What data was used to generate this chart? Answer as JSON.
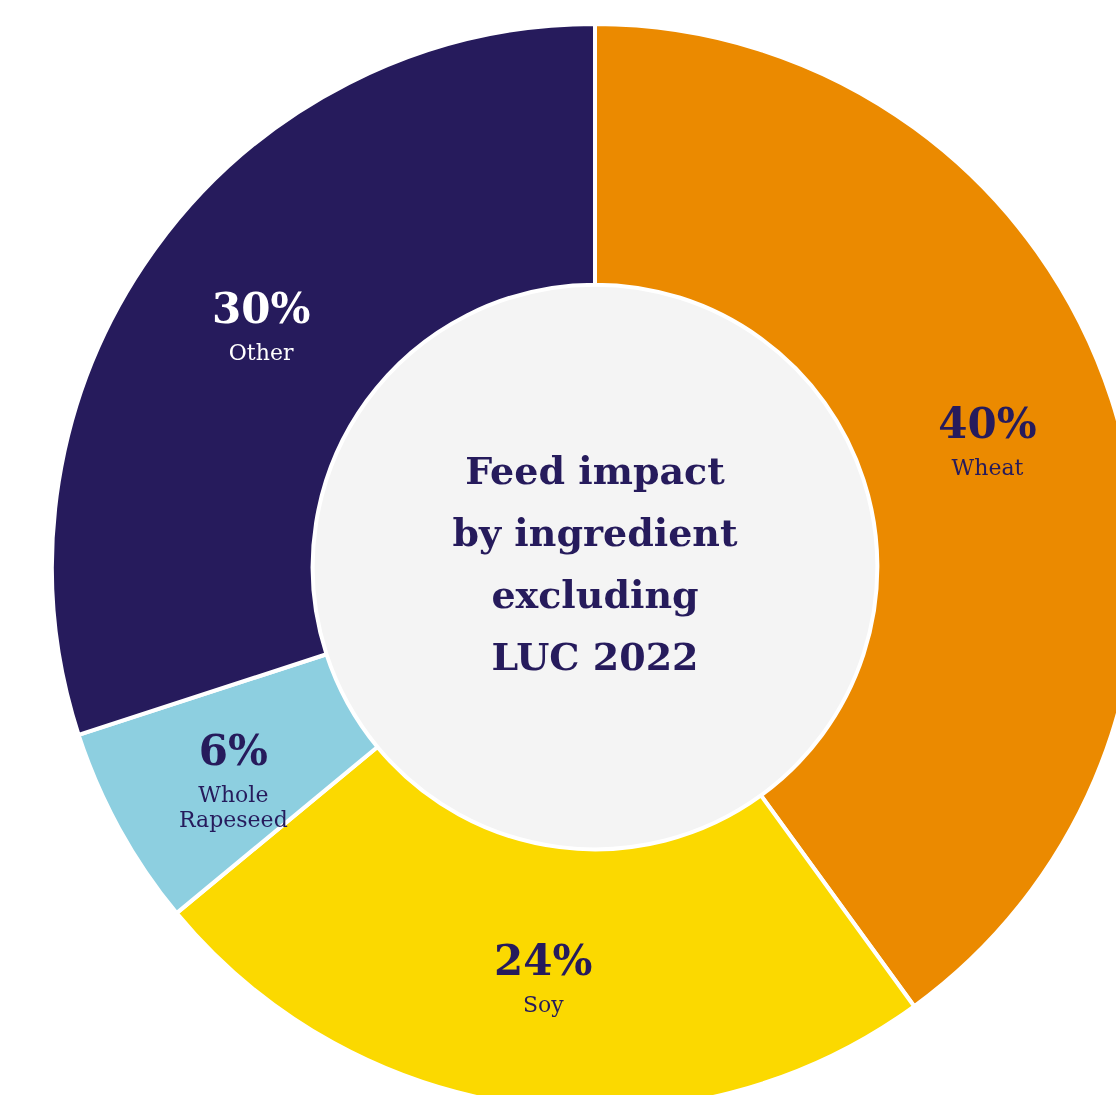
{
  "chart_data": {
    "type": "donut",
    "title": "Feed impact by ingredient excluding LUC 2022",
    "categories": [
      "Wheat",
      "Soy",
      "Whole Rapeseed",
      "Other"
    ],
    "values": [
      40,
      24,
      6,
      30
    ],
    "colors": [
      "#eb8a00",
      "#fbd900",
      "#8dcfe0",
      "#261b5c"
    ],
    "value_labels": [
      "40%",
      "24%",
      "6%",
      "30%"
    ],
    "legend": false
  }
}
